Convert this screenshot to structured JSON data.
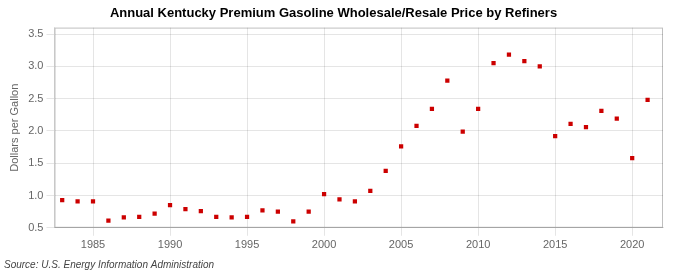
{
  "chart_data": {
    "type": "scatter",
    "title": "Annual Kentucky Premium Gasoline Wholesale/Resale Price by Refiners",
    "ylabel": "Dollars per Gallon",
    "annotation": "Source: U.S. Energy Information Administration",
    "x": [
      1983,
      1984,
      1985,
      1986,
      1987,
      1988,
      1989,
      1990,
      1991,
      1992,
      1993,
      1994,
      1995,
      1996,
      1997,
      1998,
      1999,
      2000,
      2001,
      2002,
      2003,
      2004,
      2005,
      2006,
      2007,
      2008,
      2009,
      2010,
      2011,
      2012,
      2013,
      2014,
      2015,
      2016,
      2017,
      2018,
      2019,
      2020,
      2021
    ],
    "values": [
      0.93,
      0.91,
      0.91,
      0.61,
      0.66,
      0.67,
      0.72,
      0.85,
      0.79,
      0.76,
      0.67,
      0.66,
      0.67,
      0.77,
      0.75,
      0.6,
      0.75,
      1.02,
      0.94,
      0.91,
      1.07,
      1.38,
      1.76,
      2.08,
      2.34,
      2.78,
      1.99,
      2.34,
      3.05,
      3.18,
      3.08,
      3.0,
      1.92,
      2.11,
      2.06,
      2.31,
      2.19,
      1.58,
      2.48
    ],
    "color": "#cc0000",
    "marker": "square",
    "xlim": [
      1982.5,
      2022
    ],
    "xticks": [
      1985,
      1990,
      1995,
      2000,
      2005,
      2010,
      2015,
      2020
    ],
    "ylim": [
      0.5,
      3.6
    ],
    "yticks": [
      0.5,
      {
        "value": 1.0,
        "label": "1.0"
      },
      1.5,
      {
        "value": 2.0,
        "label": "2.0"
      },
      2.5,
      {
        "value": 3.0,
        "label": "3.0"
      },
      3.5
    ],
    "grid": true
  }
}
